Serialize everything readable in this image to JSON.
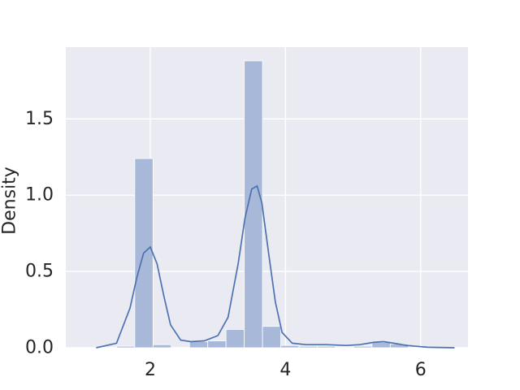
{
  "chart_data": {
    "type": "bar",
    "title": "",
    "xlabel": "",
    "ylabel": "Density",
    "xlim": [
      0.75,
      6.7
    ],
    "ylim": [
      0.0,
      1.97
    ],
    "xticks": [
      2,
      4,
      6
    ],
    "yticks": [
      0.0,
      0.5,
      1.0,
      1.5
    ],
    "ytick_labels": [
      "0.0",
      "0.5",
      "1.0",
      "1.5"
    ],
    "grid": true,
    "colors": {
      "background": "#EAEAF2",
      "grid": "#FFFFFF",
      "bar": "#A8B8D8",
      "line": "#4C72B0"
    },
    "histogram": {
      "bin_edges": [
        1.5,
        1.77,
        2.04,
        2.31,
        2.58,
        2.85,
        3.12,
        3.39,
        3.66,
        3.93,
        4.2,
        4.47,
        4.74,
        5.01,
        5.28,
        5.55,
        5.82
      ],
      "density": [
        0.01,
        1.24,
        0.02,
        0.0,
        0.04,
        0.045,
        0.12,
        1.88,
        0.14,
        0.015,
        0.01,
        0.01,
        0.005,
        0.01,
        0.035,
        0.025
      ]
    },
    "kde": {
      "x": [
        1.2,
        1.5,
        1.7,
        1.8,
        1.9,
        2.0,
        2.1,
        2.2,
        2.3,
        2.45,
        2.6,
        2.8,
        3.0,
        3.15,
        3.3,
        3.4,
        3.5,
        3.58,
        3.65,
        3.75,
        3.85,
        3.95,
        4.1,
        4.3,
        4.6,
        4.9,
        5.1,
        5.3,
        5.45,
        5.6,
        5.8,
        6.1,
        6.5
      ],
      "y": [
        0.0,
        0.03,
        0.26,
        0.46,
        0.62,
        0.66,
        0.55,
        0.34,
        0.15,
        0.05,
        0.04,
        0.045,
        0.08,
        0.2,
        0.55,
        0.85,
        1.04,
        1.06,
        0.95,
        0.62,
        0.3,
        0.1,
        0.03,
        0.02,
        0.02,
        0.015,
        0.02,
        0.035,
        0.04,
        0.03,
        0.015,
        0.003,
        0.0
      ]
    }
  }
}
